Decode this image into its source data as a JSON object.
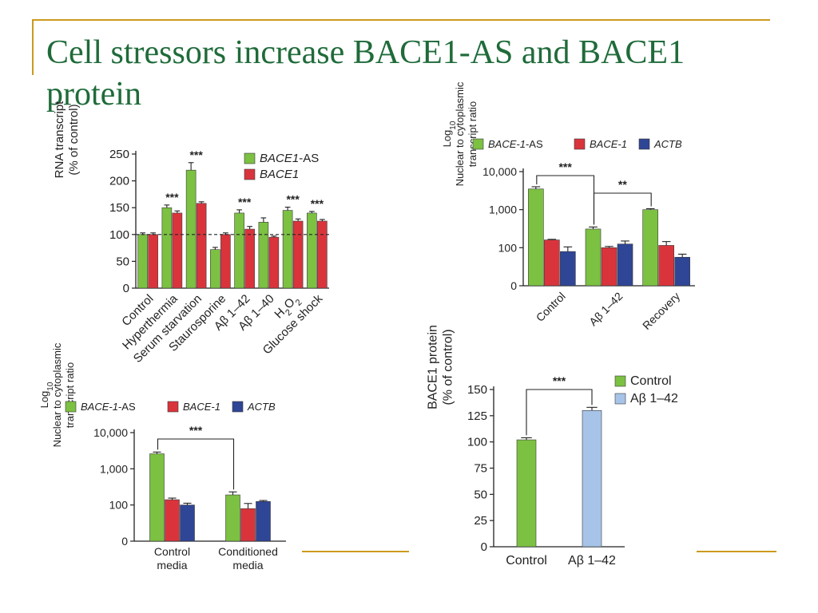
{
  "slide": {
    "title": "Cell stressors increase BACE1-AS and BACE1 protein",
    "accent_color": "#cc9a1e",
    "title_color": "#1f6b3a"
  },
  "colors": {
    "green": "#7cc142",
    "red": "#d9343c",
    "blue": "#2f4596",
    "lightblue": "#a7c4e8"
  },
  "chart_data": [
    {
      "id": "chart1",
      "type": "bar",
      "ylabel_lines": [
        "RNA transcript",
        "(% of control)"
      ],
      "ylim": [
        0,
        250
      ],
      "yticks": [
        0,
        50,
        100,
        150,
        200,
        250
      ],
      "reference_line": 100,
      "categories": [
        "Control",
        "Hyperthermia",
        "Serum starvation",
        "Staurosporine",
        "Aβ 1–42",
        "Aβ 1–40",
        "H2O2",
        "Glucose shock"
      ],
      "series": [
        {
          "name": "BACE1-AS",
          "color": "#7cc142",
          "values": [
            100,
            150,
            220,
            72,
            140,
            123,
            145,
            140
          ],
          "errors": [
            3,
            5,
            14,
            4,
            6,
            8,
            6,
            3
          ]
        },
        {
          "name": "BACE1",
          "color": "#d9343c",
          "values": [
            100,
            140,
            158,
            100,
            110,
            95,
            125,
            125
          ],
          "errors": [
            3,
            4,
            3,
            3,
            5,
            2,
            4,
            3
          ]
        }
      ],
      "significance": [
        {
          "category": 1,
          "label": "***"
        },
        {
          "category": 2,
          "label": "***"
        },
        {
          "category": 4,
          "label": "***"
        },
        {
          "category": 6,
          "label": "***"
        },
        {
          "category": 7,
          "label": "***"
        }
      ],
      "legend": "top-right"
    },
    {
      "id": "chart2",
      "type": "bar",
      "yscale": "log",
      "ylabel_lines": [
        "Log10",
        "Nuclear to cytoplasmic",
        "transcript ratio"
      ],
      "yticks": [
        0,
        100,
        1000,
        10000
      ],
      "ytick_labels": [
        "0",
        "100",
        "1,000",
        "10,000"
      ],
      "categories": [
        "Control",
        "Aβ 1–42",
        "Recovery"
      ],
      "series": [
        {
          "name": "BACE-1-AS",
          "color": "#7cc142",
          "values": [
            3500,
            310,
            1000
          ],
          "errors": [
            500,
            40,
            60
          ]
        },
        {
          "name": "BACE-1",
          "color": "#d9343c",
          "values": [
            160,
            100,
            115
          ],
          "errors": [
            6,
            8,
            30
          ]
        },
        {
          "name": "ACTB",
          "color": "#2f4596",
          "values": [
            90,
            125,
            75
          ],
          "errors": [
            15,
            25,
            8
          ]
        }
      ],
      "significance": [
        {
          "from": 0,
          "to": 1,
          "label": "***"
        },
        {
          "from": 1,
          "to": 2,
          "label": "**"
        }
      ],
      "legend": "top"
    },
    {
      "id": "chart3",
      "type": "bar",
      "yscale": "log",
      "ylabel_lines": [
        "Log10",
        "Nuclear to cytoplasmic",
        "transcript ratio"
      ],
      "yticks": [
        0,
        100,
        1000,
        10000
      ],
      "ytick_labels": [
        "0",
        "100",
        "1,000",
        "10,000"
      ],
      "categories": [
        [
          "Control",
          "media"
        ],
        [
          "Conditioned",
          "media"
        ]
      ],
      "series": [
        {
          "name": "BACE-1-AS",
          "color": "#7cc142",
          "values": [
            2600,
            190
          ],
          "errors": [
            300,
            40
          ]
        },
        {
          "name": "BACE-1",
          "color": "#d9343c",
          "values": [
            140,
            90
          ],
          "errors": [
            15,
            20
          ]
        },
        {
          "name": "ACTB",
          "color": "#2f4596",
          "values": [
            100,
            125
          ],
          "errors": [
            12,
            8
          ]
        }
      ],
      "significance": [
        {
          "from": 0,
          "to": 1,
          "label": "***"
        }
      ],
      "legend": "top"
    },
    {
      "id": "chart4",
      "type": "bar",
      "ylabel_lines": [
        "BACE1 protein",
        "(% of control)"
      ],
      "ylim": [
        0,
        150
      ],
      "yticks": [
        0,
        25,
        50,
        75,
        100,
        125,
        150
      ],
      "categories": [
        "Control",
        "Aβ 1–42"
      ],
      "series": [
        {
          "name": "Control",
          "color": "#7cc142",
          "values": [
            102,
            null
          ],
          "errors": [
            2,
            null
          ]
        },
        {
          "name": "Aβ 1–42",
          "color": "#a7c4e8",
          "values": [
            null,
            130
          ],
          "errors": [
            null,
            3
          ]
        }
      ],
      "significance": [
        {
          "from": 0,
          "to": 1,
          "label": "***"
        }
      ],
      "legend": "top-right"
    }
  ]
}
